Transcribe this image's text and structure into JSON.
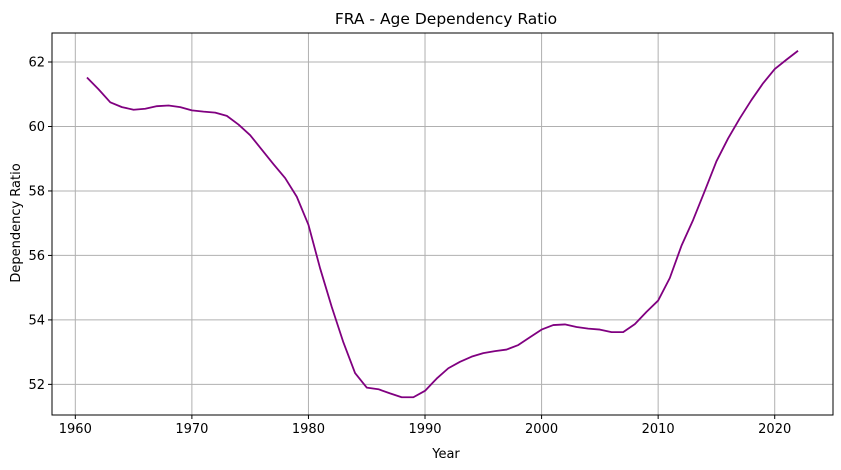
{
  "chart_data": {
    "type": "line",
    "title": "FRA - Age Dependency Ratio",
    "xlabel": "Year",
    "ylabel": "Dependency Ratio",
    "xlim": [
      1958,
      2025
    ],
    "ylim": [
      51.05,
      62.9
    ],
    "x_ticks": [
      1960,
      1970,
      1980,
      1990,
      2000,
      2010,
      2020
    ],
    "y_ticks": [
      52,
      54,
      56,
      58,
      60,
      62
    ],
    "grid": true,
    "line_color": "#800080",
    "series": [
      {
        "name": "",
        "x": [
          1961,
          1962,
          1963,
          1964,
          1965,
          1966,
          1967,
          1968,
          1969,
          1970,
          1971,
          1972,
          1973,
          1974,
          1975,
          1976,
          1977,
          1978,
          1979,
          1980,
          1981,
          1982,
          1983,
          1984,
          1985,
          1986,
          1987,
          1988,
          1989,
          1990,
          1991,
          1992,
          1993,
          1994,
          1995,
          1996,
          1997,
          1998,
          1999,
          2000,
          2001,
          2002,
          2003,
          2004,
          2005,
          2006,
          2007,
          2008,
          2009,
          2010,
          2011,
          2012,
          2013,
          2014,
          2015,
          2016,
          2017,
          2018,
          2019,
          2020,
          2021,
          2022
        ],
        "y": [
          61.52,
          61.15,
          60.75,
          60.6,
          60.52,
          60.55,
          60.63,
          60.65,
          60.6,
          60.5,
          60.46,
          60.43,
          60.33,
          60.06,
          59.73,
          59.28,
          58.83,
          58.4,
          57.82,
          56.95,
          55.6,
          54.4,
          53.3,
          52.35,
          51.9,
          51.85,
          51.72,
          51.6,
          51.6,
          51.8,
          52.18,
          52.5,
          52.7,
          52.86,
          52.97,
          53.03,
          53.08,
          53.22,
          53.46,
          53.7,
          53.84,
          53.86,
          53.78,
          53.73,
          53.7,
          53.62,
          53.62,
          53.87,
          54.25,
          54.6,
          55.3,
          56.3,
          57.1,
          58.0,
          58.92,
          59.63,
          60.25,
          60.82,
          61.34,
          61.78,
          62.07,
          62.35
        ]
      }
    ]
  }
}
